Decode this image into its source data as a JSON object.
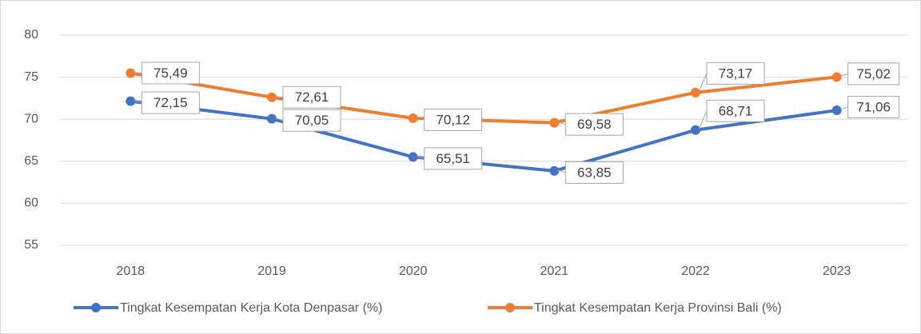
{
  "chart_data": {
    "type": "line",
    "categories": [
      "2018",
      "2019",
      "2020",
      "2021",
      "2022",
      "2023"
    ],
    "series": [
      {
        "name": "Tingkat Kesempatan Kerja Kota Denpasar (%)",
        "color": "#4472c4",
        "values": [
          72.15,
          70.05,
          65.51,
          63.85,
          68.71,
          71.06
        ],
        "value_labels": [
          "72,15",
          "70,05",
          "65,51",
          "63,85",
          "68,71",
          "71,06"
        ]
      },
      {
        "name": "Tingkat Kesempatan Kerja Provinsi Bali (%)",
        "color": "#ed7d31",
        "values": [
          75.49,
          72.61,
          70.12,
          69.58,
          73.17,
          75.02
        ],
        "value_labels": [
          "75,49",
          "72,61",
          "70,12",
          "69,58",
          "73,17",
          "75,02"
        ]
      }
    ],
    "ylim": [
      55,
      80
    ],
    "yticks": [
      55,
      60,
      65,
      70,
      75,
      80
    ],
    "grid": true,
    "legend": "bottom"
  }
}
